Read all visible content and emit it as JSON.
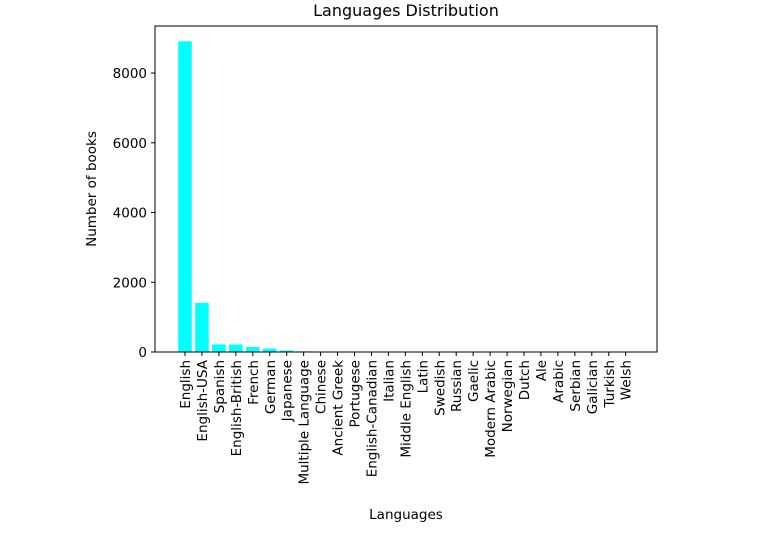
{
  "chart_data": {
    "type": "bar",
    "title": "Languages Distribution",
    "xlabel": "Languages",
    "ylabel": "Number of books",
    "categories": [
      "English",
      "English-USA",
      "Spanish",
      "English-British",
      "French",
      "German",
      "Japanese",
      "Multiple Language",
      "Chinese",
      "Ancient Greek",
      "Portugese",
      "English-Canadian",
      "Italian",
      "Middle English",
      "Latin",
      "Swedish",
      "Russian",
      "Gaelic",
      "Modern Arabic",
      "Norwegian",
      "Dutch",
      "Ale",
      "Arabic",
      "Serbian",
      "Galician",
      "Turkish",
      "Welsh"
    ],
    "values": [
      8911,
      1408,
      218,
      214,
      144,
      99,
      46,
      19,
      14,
      11,
      10,
      7,
      5,
      3,
      3,
      2,
      2,
      1,
      1,
      1,
      1,
      1,
      1,
      1,
      1,
      1,
      1
    ],
    "ylim": [
      0,
      9350
    ],
    "yticks": [
      0,
      2000,
      4000,
      6000,
      8000
    ],
    "grid": false,
    "bar_color": "#00FFFF"
  }
}
